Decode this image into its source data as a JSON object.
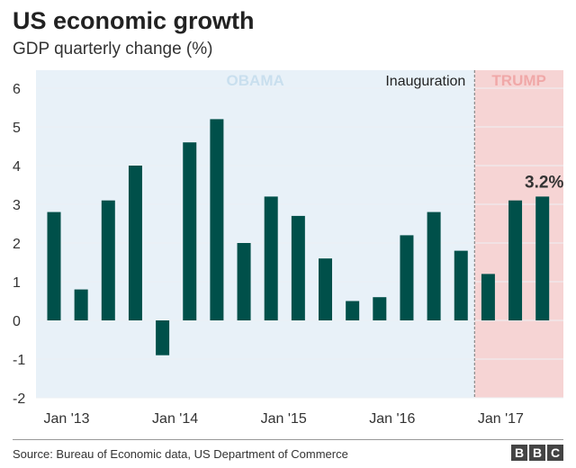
{
  "header": {
    "title": "US economic growth",
    "subtitle": "GDP quarterly change (%)"
  },
  "footer": {
    "source": "Source: Bureau of Economic data, US Department of Commerce",
    "logo_letters": [
      "B",
      "B",
      "C"
    ]
  },
  "colors": {
    "bar": "#00504a",
    "obama_bg": "#e8f1f8",
    "trump_bg": "#f6d4d4",
    "obama_label": "#c9dfee",
    "trump_label": "#f0a8a8",
    "divider": "#888888"
  },
  "chart_data": {
    "type": "bar",
    "title": "US economic growth",
    "subtitle": "GDP quarterly change (%)",
    "xlabel": "",
    "ylabel": "GDP quarterly change (%)",
    "ylim": [
      -2,
      6
    ],
    "yticks": [
      -2,
      -1,
      0,
      1,
      2,
      3,
      4,
      5,
      6
    ],
    "grid": true,
    "categories": [
      "Q1 2013",
      "Q2 2013",
      "Q3 2013",
      "Q4 2013",
      "Q1 2014",
      "Q2 2014",
      "Q3 2014",
      "Q4 2014",
      "Q1 2015",
      "Q2 2015",
      "Q3 2015",
      "Q4 2015",
      "Q1 2016",
      "Q2 2016",
      "Q3 2016",
      "Q4 2016",
      "Q1 2017",
      "Q2 2017",
      "Q3 2017"
    ],
    "values": [
      2.8,
      0.8,
      3.1,
      4.0,
      -0.9,
      4.6,
      5.2,
      2.0,
      3.2,
      2.7,
      1.6,
      0.5,
      0.6,
      2.2,
      2.8,
      1.8,
      1.2,
      3.1,
      3.2
    ],
    "xtick_labels": [
      {
        "label": "Jan '13",
        "index": 0
      },
      {
        "label": "Jan '14",
        "index": 4
      },
      {
        "label": "Jan '15",
        "index": 8
      },
      {
        "label": "Jan '16",
        "index": 12
      },
      {
        "label": "Jan '17",
        "index": 16
      }
    ],
    "regions": [
      {
        "name": "OBAMA",
        "from_index": 0,
        "to_index": 15
      },
      {
        "name": "TRUMP",
        "from_index": 16,
        "to_index": 18
      }
    ],
    "annotations": [
      {
        "text": "Inauguration",
        "at": "boundary between Q4 2016 and Q1 2017"
      },
      {
        "text": "3.2%",
        "index": 18
      }
    ]
  }
}
